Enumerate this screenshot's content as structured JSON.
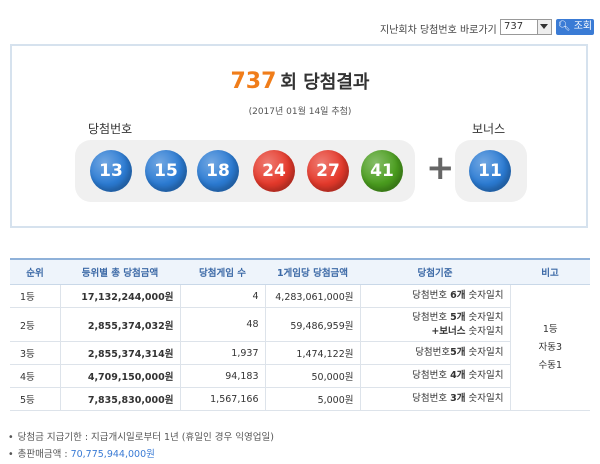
{
  "nav": {
    "label": "지난회차 당첨번호 바로가기",
    "selected": "737",
    "button": "조회"
  },
  "result": {
    "round": "737",
    "title_suffix": "회 당첨결과",
    "date": "(2017년 01월 14일 추첨)",
    "numbers_label": "당첨번호",
    "bonus_label": "보너스",
    "numbers": [
      {
        "value": 13,
        "color": "#2b7bd3"
      },
      {
        "value": 15,
        "color": "#2b7bd3"
      },
      {
        "value": 18,
        "color": "#2b7bd3"
      },
      {
        "value": 24,
        "color": "#e5392b"
      },
      {
        "value": 27,
        "color": "#e5392b"
      },
      {
        "value": 41,
        "color": "#4a9d1e"
      }
    ],
    "bonus": {
      "value": 11,
      "color": "#2b7bd3"
    }
  },
  "table": {
    "headers": [
      "순위",
      "등위별 총 당첨금액",
      "당첨게임 수",
      "1게임당 당첨금액",
      "당첨기준",
      "비고"
    ],
    "rows": [
      {
        "rank": "1등",
        "total": "17,132,244,000원",
        "winners": "4",
        "per_game": "4,283,061,000원",
        "criteria": [
          [
            {
              "text": "당첨번호 "
            },
            {
              "text": "6개",
              "bold": true
            },
            {
              "text": " 숫자일치"
            }
          ]
        ]
      },
      {
        "rank": "2등",
        "total": "2,855,374,032원",
        "winners": "48",
        "per_game": "59,486,959원",
        "criteria": [
          [
            {
              "text": "당첨번호 "
            },
            {
              "text": "5개",
              "bold": true
            },
            {
              "text": " 숫자일치"
            }
          ],
          [
            {
              "text": "+보너스",
              "bold": true
            },
            {
              "text": " 숫자일치"
            }
          ]
        ]
      },
      {
        "rank": "3등",
        "total": "2,855,374,314원",
        "winners": "1,937",
        "per_game": "1,474,122원",
        "criteria": [
          [
            {
              "text": "당첨번호"
            },
            {
              "text": "5개",
              "bold": true
            },
            {
              "text": " 숫자일치"
            }
          ]
        ]
      },
      {
        "rank": "4등",
        "total": "4,709,150,000원",
        "winners": "94,183",
        "per_game": "50,000원",
        "criteria": [
          [
            {
              "text": "당첨번호 "
            },
            {
              "text": "4개",
              "bold": true
            },
            {
              "text": " 숫자일치"
            }
          ]
        ]
      },
      {
        "rank": "5등",
        "total": "7,835,830,000원",
        "winners": "1,567,166",
        "per_game": "5,000원",
        "criteria": [
          [
            {
              "text": "당첨번호 "
            },
            {
              "text": "3개",
              "bold": true
            },
            {
              "text": " 숫자일치"
            }
          ]
        ]
      }
    ],
    "note": [
      "1등",
      "자동3",
      "수동1"
    ]
  },
  "footer": {
    "deadline": "당첨금 지급기한 : 지급개시일로부터 1년 (휴일인 경우 익영업일)",
    "sales_label": "총판매금액 : ",
    "sales_value": "70,775,944,000원"
  }
}
